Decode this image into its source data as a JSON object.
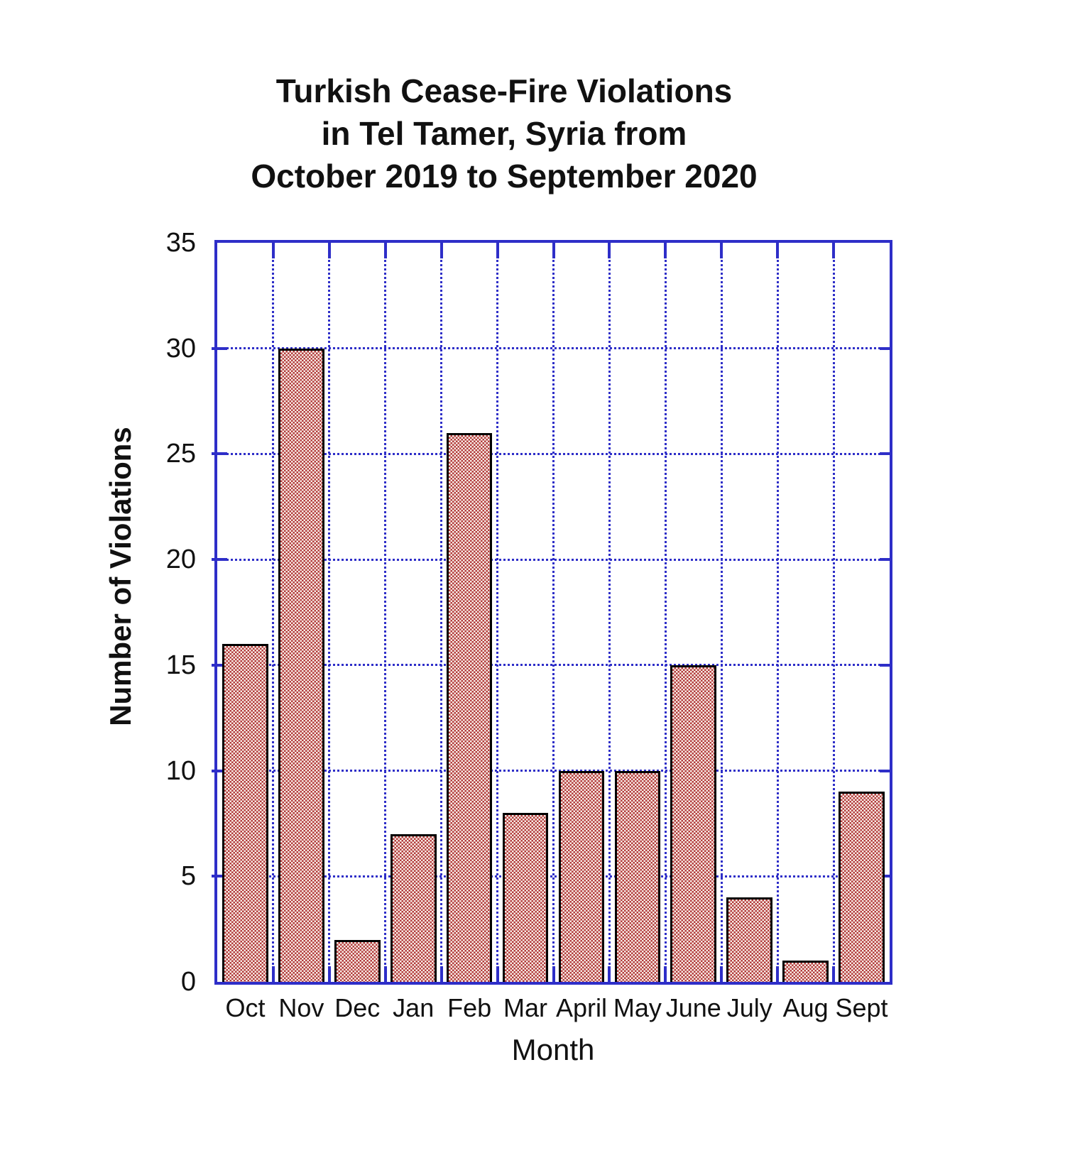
{
  "title": {
    "lines": [
      "Turkish Cease-Fire Violations",
      "in Tel Tamer, Syria from",
      "October 2019 to September 2020"
    ]
  },
  "chart_data": {
    "type": "bar",
    "title": "Turkish Cease-Fire Violations in Tel Tamer, Syria from October 2019 to September 2020",
    "xlabel": "Month",
    "ylabel": "Number of Violations",
    "categories": [
      "Oct",
      "Nov",
      "Dec",
      "Jan",
      "Feb",
      "Mar",
      "April",
      "May",
      "June",
      "July",
      "Aug",
      "Sept"
    ],
    "values": [
      16,
      30,
      2,
      7,
      26,
      8,
      10,
      10,
      15,
      4,
      1,
      9
    ],
    "ylim": [
      0,
      35
    ],
    "ytick_step": 5,
    "y_tick_labels": [
      "0",
      "5",
      "10",
      "15",
      "20",
      "25",
      "30",
      "35"
    ],
    "grid": "dotted blue horizontal lines at multiples of 5 and vertical lines at category boundaries; solid blue frame with inward tick marks",
    "legend": "none",
    "colors": {
      "axis_and_grid": "#2e2ec8",
      "bar_pattern_dark": "#b23c3c",
      "bar_pattern_light": "#f8ece6",
      "bar_border": "#000000",
      "text": "#111111",
      "background": "#ffffff"
    }
  }
}
